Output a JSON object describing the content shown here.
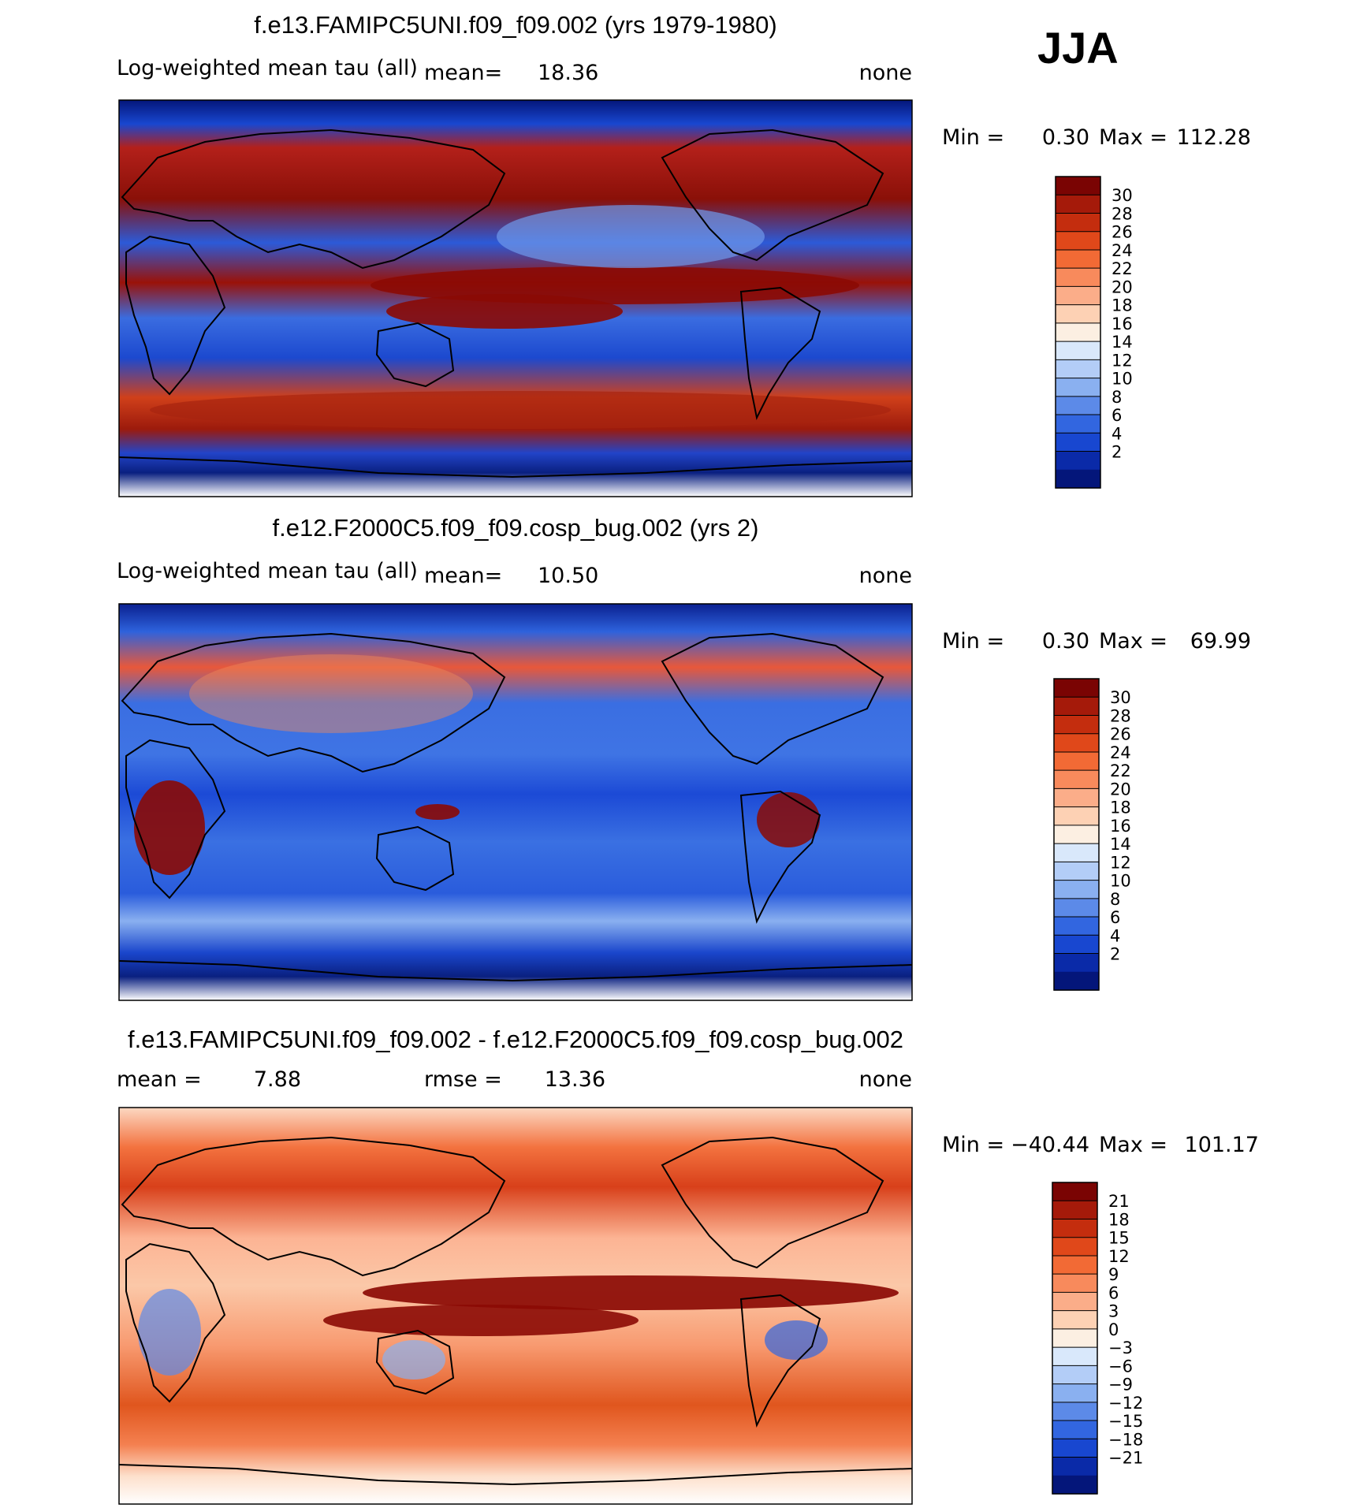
{
  "season": "JJA",
  "chart_data": [
    {
      "type": "heatmap",
      "title": "f.e13.FAMIPC5UNI.f09_f09.002 (yrs 1979-1980)",
      "variable": "Log-weighted mean tau (all)",
      "mean_label": "mean=",
      "mean": "18.36",
      "units": "none",
      "min_label": "Min =",
      "min": "0.30",
      "max_label": "Max =",
      "max": "112.28",
      "colorbar": {
        "levels": [
          "30",
          "28",
          "26",
          "24",
          "22",
          "20",
          "18",
          "16",
          "14",
          "12",
          "10",
          "8",
          "6",
          "4",
          "2"
        ],
        "colors": [
          "#7a0403",
          "#a51a0a",
          "#c42d0e",
          "#e0481a",
          "#f26a35",
          "#f88a5c",
          "#fbad89",
          "#fdd1b4",
          "#fcefe2",
          "#d9e8fb",
          "#b3cdf7",
          "#8ab0f0",
          "#5c8ae8",
          "#3266e0",
          "#1847d0",
          "#0a2aa8",
          "#04167a"
        ]
      }
    },
    {
      "type": "heatmap",
      "title": "f.e12.F2000C5.f09_f09.cosp_bug.002 (yrs 2)",
      "variable": "Log-weighted mean tau (all)",
      "mean_label": "mean=",
      "mean": "10.50",
      "units": "none",
      "min_label": "Min =",
      "min": "0.30",
      "max_label": "Max =",
      "max": "69.99",
      "colorbar": {
        "levels": [
          "30",
          "28",
          "26",
          "24",
          "22",
          "20",
          "18",
          "16",
          "14",
          "12",
          "10",
          "8",
          "6",
          "4",
          "2"
        ],
        "colors": [
          "#7a0403",
          "#a51a0a",
          "#c42d0e",
          "#e0481a",
          "#f26a35",
          "#f88a5c",
          "#fbad89",
          "#fdd1b4",
          "#fcefe2",
          "#d9e8fb",
          "#b3cdf7",
          "#8ab0f0",
          "#5c8ae8",
          "#3266e0",
          "#1847d0",
          "#0a2aa8",
          "#04167a"
        ]
      }
    },
    {
      "type": "heatmap",
      "title": "f.e13.FAMIPC5UNI.f09_f09.002 - f.e12.F2000C5.f09_f09.cosp_bug.002",
      "mean_label": "mean =",
      "mean": "7.88",
      "rmse_label": "rmse =",
      "rmse": "13.36",
      "units": "none",
      "min_label": "Min =",
      "min": "−40.44",
      "max_label": "Max =",
      "max": "101.17",
      "colorbar": {
        "levels": [
          "21",
          "18",
          "15",
          "12",
          "9",
          "6",
          "3",
          "0",
          "−3",
          "−6",
          "−9",
          "−12",
          "−15",
          "−18",
          "−21"
        ],
        "colors": [
          "#7a0403",
          "#a51a0a",
          "#c42d0e",
          "#e0481a",
          "#f26a35",
          "#f88a5c",
          "#fbad89",
          "#fdd1b4",
          "#fcefe2",
          "#d9e8fb",
          "#b3cdf7",
          "#8ab0f0",
          "#5c8ae8",
          "#3266e0",
          "#1847d0",
          "#0a2aa8",
          "#04167a"
        ]
      }
    }
  ]
}
